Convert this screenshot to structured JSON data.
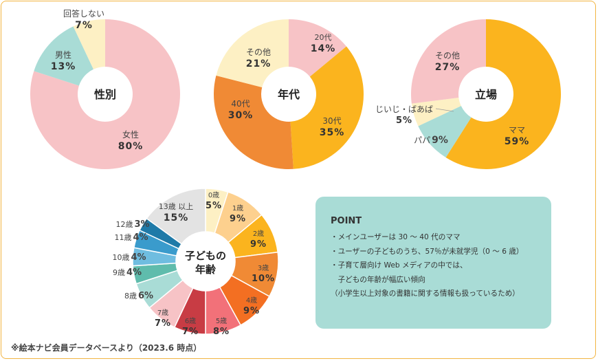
{
  "chart_data": [
    {
      "type": "pie",
      "title": "性別",
      "slices": [
        {
          "label": "女性",
          "value": 80,
          "display": "80%",
          "color": "#f7c3c6"
        },
        {
          "label": "男性",
          "value": 13,
          "display": "13%",
          "color": "#a9dcd6"
        },
        {
          "label": "回答しない",
          "value": 7,
          "display": "7%",
          "color": "#fdf0c4"
        }
      ]
    },
    {
      "type": "pie",
      "title": "年代",
      "slices": [
        {
          "label": "20代",
          "value": 14,
          "display": "14%",
          "color": "#f7c3c6"
        },
        {
          "label": "30代",
          "value": 35,
          "display": "35%",
          "color": "#fbb41e"
        },
        {
          "label": "40代",
          "value": 30,
          "display": "30%",
          "color": "#f08a35"
        },
        {
          "label": "その他",
          "value": 21,
          "display": "21%",
          "color": "#fdf0c4"
        }
      ]
    },
    {
      "type": "pie",
      "title": "立場",
      "slices": [
        {
          "label": "ママ",
          "value": 59,
          "display": "59%",
          "color": "#fbb41e"
        },
        {
          "label": "パパ",
          "value": 9,
          "display": "9%",
          "color": "#a9dcd6"
        },
        {
          "label": "じいじ・ばあば",
          "value": 5,
          "display": "5%",
          "color": "#fdf0c4"
        },
        {
          "label": "その他",
          "value": 27,
          "display": "27%",
          "color": "#f7c3c6"
        }
      ]
    },
    {
      "type": "pie",
      "title_line1": "子どもの",
      "title_line2": "年齢",
      "slices": [
        {
          "label": "0歳",
          "value": 5,
          "display": "5%",
          "color": "#fdf0c4"
        },
        {
          "label": "1歳",
          "value": 9,
          "display": "9%",
          "color": "#fdd08e"
        },
        {
          "label": "2歳",
          "value": 9,
          "display": "9%",
          "color": "#fbb41e"
        },
        {
          "label": "3歳",
          "value": 10,
          "display": "10%",
          "color": "#f08a35"
        },
        {
          "label": "4歳",
          "value": 9,
          "display": "9%",
          "color": "#f36f22"
        },
        {
          "label": "5歳",
          "value": 8,
          "display": "8%",
          "color": "#f27179"
        },
        {
          "label": "6歳",
          "value": 7,
          "display": "7%",
          "color": "#c83c44"
        },
        {
          "label": "7歳",
          "value": 7,
          "display": "7%",
          "color": "#f7c3c6"
        },
        {
          "label": "8歳",
          "value": 6,
          "display": "6%",
          "color": "#a9dcd6"
        },
        {
          "label": "9歳",
          "value": 4,
          "display": "4%",
          "color": "#5fbcac"
        },
        {
          "label": "10歳",
          "value": 4,
          "display": "4%",
          "color": "#6fbde0"
        },
        {
          "label": "11歳",
          "value": 4,
          "display": "4%",
          "color": "#3a9bcc"
        },
        {
          "label": "12歳",
          "value": 3,
          "display": "3%",
          "color": "#1f7aa8"
        },
        {
          "label": "13歳 以上",
          "value": 15,
          "display": "15%",
          "color": "#e3e3e3"
        }
      ]
    }
  ],
  "point": {
    "title": "POINT",
    "lines": [
      "・メインユーザーは 30 〜 40 代のママ",
      "・ユーザーの子どものうち、57％が未就学児（0 〜 6 歳）",
      "・子育て層向け Web メディアの中では、",
      "　子どもの年齢が幅広い傾向",
      "（小学生以上対象の書籍に関する情報も扱っているため）"
    ]
  },
  "footnote": "※絵本ナビ会員データベースより（2023.6 時点）",
  "colors": {
    "frame": "#f2b441",
    "point_bg": "#a9dcd6"
  }
}
